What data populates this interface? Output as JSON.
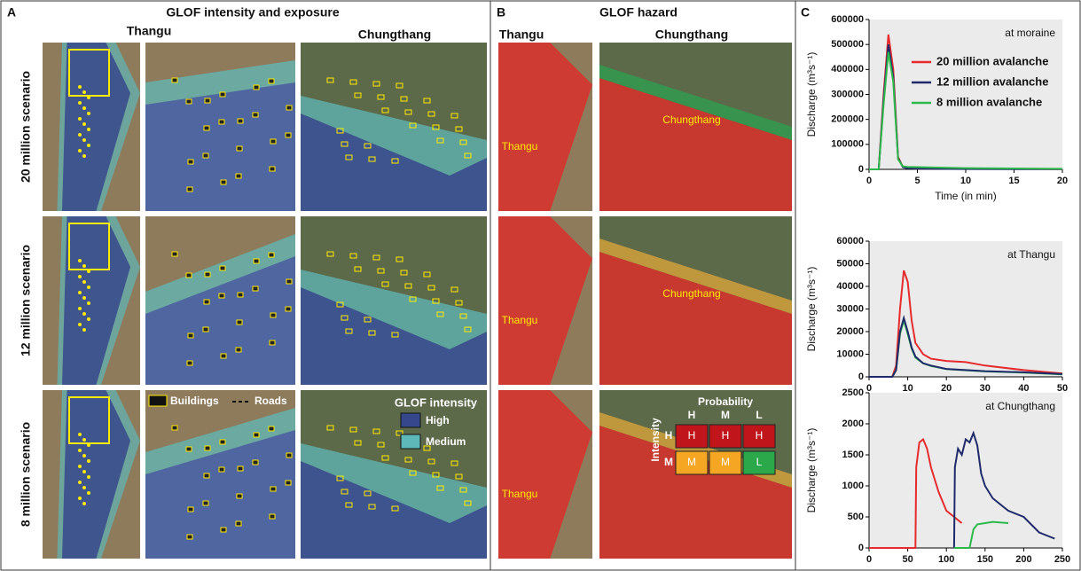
{
  "panel_a": {
    "label": "A",
    "title": "GLOF intensity and exposure",
    "columns": [
      "Thangu",
      "Chungthang"
    ],
    "rows": [
      "20 million scenario",
      "12 million scenario",
      "8 million scenario"
    ],
    "legend": {
      "buildings": "Buildings",
      "roads": "Roads",
      "intensity_title": "GLOF intensity",
      "high": "High",
      "medium": "Medium"
    }
  },
  "panel_b": {
    "label": "B",
    "title": "GLOF hazard",
    "columns": [
      "Thangu",
      "Chungthang"
    ],
    "map_labels": [
      [
        "Thangu",
        "Chungthang"
      ],
      [
        "Thangu",
        "Chungthang"
      ],
      [
        "Thangu"
      ]
    ],
    "matrix": {
      "title": "Probability",
      "columns": [
        "H",
        "M",
        "L"
      ],
      "axis": "Intensity",
      "rows": [
        "H",
        "M"
      ],
      "cells": [
        [
          "H",
          "H",
          "H"
        ],
        [
          "M",
          "M",
          "L"
        ]
      ]
    }
  },
  "panel_c": {
    "label": "C"
  },
  "chart_data": [
    {
      "type": "line",
      "annotation": "at moraine",
      "y_label": "Discharge (m³s⁻¹)",
      "x_label": "Time (in min)",
      "xlim": [
        0,
        20
      ],
      "xticks": [
        0,
        5,
        10,
        15,
        20
      ],
      "ylim": [
        0,
        600000
      ],
      "yticks": [
        0,
        100000,
        200000,
        300000,
        400000,
        500000,
        600000
      ],
      "series": [
        {
          "name": "20 million avalanche",
          "color": "#e52b2e",
          "x": [
            0,
            1,
            1.5,
            2,
            2.5,
            3,
            3.5,
            4,
            5,
            10,
            20
          ],
          "values": [
            0,
            0,
            300000,
            540000,
            400000,
            50000,
            10000,
            5000,
            3000,
            2000,
            1000
          ]
        },
        {
          "name": "12 million avalanche",
          "color": "#1f2a6b",
          "x": [
            0,
            1,
            1.5,
            2,
            2.5,
            3,
            3.5,
            4,
            5,
            10,
            20
          ],
          "values": [
            0,
            0,
            280000,
            500000,
            370000,
            45000,
            9000,
            4000,
            2500,
            1500,
            800
          ]
        },
        {
          "name": "8 million avalanche",
          "color": "#2db84b",
          "x": [
            0,
            1,
            1.5,
            2,
            2.5,
            3,
            3.5,
            4,
            5,
            10,
            20
          ],
          "values": [
            0,
            0,
            260000,
            470000,
            350000,
            40000,
            12000,
            10000,
            9000,
            5000,
            2000
          ]
        }
      ]
    },
    {
      "type": "line",
      "annotation": "at Thangu",
      "y_label": "Discharge (m³s⁻¹)",
      "xlim": [
        0,
        50
      ],
      "xticks": [
        0,
        10,
        20,
        30,
        40,
        50
      ],
      "ylim": [
        0,
        60000
      ],
      "yticks": [
        0,
        10000,
        20000,
        30000,
        40000,
        50000,
        60000
      ],
      "series": [
        {
          "color": "#e52b2e",
          "x": [
            0,
            6,
            7,
            8,
            9,
            10,
            11,
            12,
            14,
            16,
            20,
            25,
            30,
            40,
            50
          ],
          "values": [
            0,
            0,
            5000,
            30000,
            47000,
            42000,
            25000,
            15000,
            10000,
            8000,
            7000,
            6500,
            5000,
            3000,
            1500
          ]
        },
        {
          "color": "#2db84b",
          "x": [
            0,
            6,
            7,
            8,
            9,
            10,
            11,
            12,
            14,
            16,
            20,
            25,
            30,
            40,
            50
          ],
          "values": [
            0,
            0,
            3000,
            19000,
            25000,
            19000,
            12500,
            8500,
            6000,
            4800,
            3400,
            2900,
            2400,
            1900,
            1100
          ]
        },
        {
          "color": "#1f2a6b",
          "x": [
            0,
            6,
            7,
            8,
            9,
            10,
            11,
            12,
            14,
            16,
            20,
            25,
            30,
            40,
            50
          ],
          "values": [
            0,
            0,
            3000,
            20000,
            26000,
            20000,
            13000,
            9000,
            6000,
            5000,
            3500,
            3000,
            2500,
            2000,
            1200
          ]
        }
      ]
    },
    {
      "type": "line",
      "annotation": "at Chungthang",
      "y_label": "Discharge (m³s⁻¹)",
      "xlim": [
        0,
        250
      ],
      "xticks": [
        0,
        50,
        100,
        150,
        200,
        250
      ],
      "ylim": [
        0,
        2500
      ],
      "yticks": [
        0,
        500,
        1000,
        1500,
        2000,
        2500
      ],
      "series": [
        {
          "color": "#e52b2e",
          "x": [
            0,
            60,
            61,
            65,
            70,
            75,
            80,
            90,
            100,
            110,
            120
          ],
          "values": [
            0,
            0,
            1300,
            1700,
            1750,
            1600,
            1300,
            900,
            600,
            500,
            400
          ]
        },
        {
          "color": "#1f2a6b",
          "x": [
            110,
            111,
            115,
            120,
            125,
            130,
            135,
            140,
            145,
            150,
            160,
            170,
            180,
            200,
            220,
            240
          ],
          "values": [
            0,
            1300,
            1600,
            1500,
            1750,
            1700,
            1850,
            1650,
            1200,
            1000,
            800,
            700,
            600,
            500,
            250,
            150
          ]
        },
        {
          "color": "#2db84b",
          "x": [
            110,
            130,
            135,
            140,
            150,
            160,
            180
          ],
          "values": [
            0,
            0,
            300,
            380,
            400,
            420,
            400
          ]
        }
      ]
    }
  ]
}
